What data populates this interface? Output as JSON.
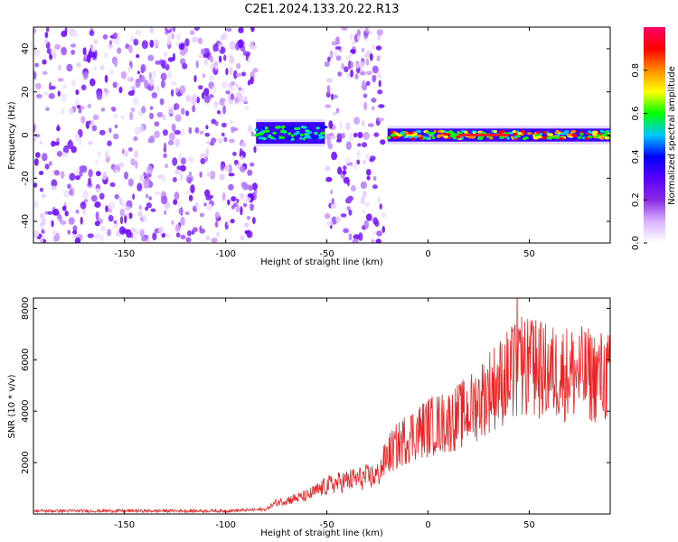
{
  "figure_title": "C2E1.2024.133.20.22.R13",
  "chart_data": [
    {
      "type": "heatmap",
      "title": "C2E1.2024.133.20.22.R13",
      "xlabel": "Height of straight line (km)",
      "ylabel": "Frequency (Hz)",
      "xlim": [
        -195,
        90
      ],
      "ylim": [
        -50,
        50
      ],
      "x_ticks": [
        -150,
        -100,
        -50,
        0,
        50
      ],
      "y_ticks": [
        -40,
        -20,
        0,
        20,
        40
      ],
      "colorbar": {
        "label": "Normalized spectral amplitude",
        "range": [
          0.0,
          1.0
        ],
        "ticks": [
          "0.0",
          "0.2",
          "0.4",
          "0.6",
          "0.8"
        ],
        "tick_values": [
          0.0,
          0.2,
          0.4,
          0.6,
          0.8
        ],
        "colormap": [
          "#ffffff",
          "#d9b3ff",
          "#8a2be2",
          "#5a00ff",
          "#0000ff",
          "#00c8ff",
          "#00ff00",
          "#ffff00",
          "#ff8c00",
          "#ff0000",
          "#ff0066"
        ]
      },
      "regions": [
        {
          "x_range": [
            -195,
            -85
          ],
          "f_range": [
            -50,
            50
          ],
          "level": "noise"
        },
        {
          "x_range": [
            -85,
            -51
          ],
          "f_range": [
            -4,
            6
          ],
          "level": "signal-low"
        },
        {
          "x_range": [
            -50,
            -22
          ],
          "f_range": [
            -50,
            50
          ],
          "level": "noise"
        },
        {
          "x_range": [
            -20,
            90
          ],
          "f_range": [
            -3,
            3
          ],
          "level": "signal-high"
        }
      ],
      "grid": false
    },
    {
      "type": "line",
      "xlabel": "Height of straight line (km)",
      "ylabel": "SNR (10 * v/v)",
      "xlim": [
        -195,
        90
      ],
      "ylim": [
        0,
        8400
      ],
      "x_ticks": [
        -150,
        -100,
        -50,
        0,
        50
      ],
      "y_ticks": [
        2000,
        4000,
        6000,
        8000
      ],
      "color": "#ee2222",
      "trend": [
        {
          "x": -195,
          "y": 120
        },
        {
          "x": -100,
          "y": 120
        },
        {
          "x": -80,
          "y": 180
        },
        {
          "x": -75,
          "y": 450
        },
        {
          "x": -60,
          "y": 700
        },
        {
          "x": -50,
          "y": 1100
        },
        {
          "x": -40,
          "y": 1300
        },
        {
          "x": -25,
          "y": 1500
        },
        {
          "x": -20,
          "y": 2300
        },
        {
          "x": -10,
          "y": 3000
        },
        {
          "x": 0,
          "y": 3400
        },
        {
          "x": 10,
          "y": 3600
        },
        {
          "x": 20,
          "y": 4000
        },
        {
          "x": 30,
          "y": 4800
        },
        {
          "x": 40,
          "y": 5400
        },
        {
          "x": 50,
          "y": 5700
        },
        {
          "x": 60,
          "y": 5500
        },
        {
          "x": 70,
          "y": 5500
        },
        {
          "x": 80,
          "y": 5400
        },
        {
          "x": 90,
          "y": 5300
        }
      ],
      "grid": false
    }
  ]
}
